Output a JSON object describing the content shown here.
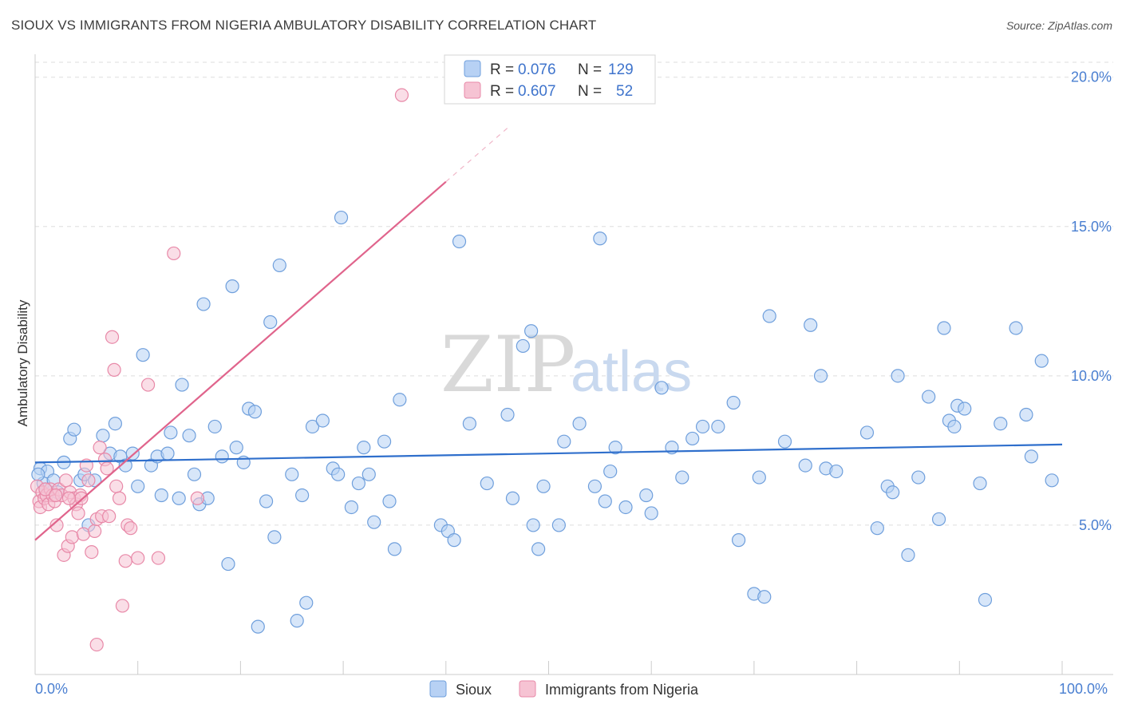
{
  "title": "SIOUX VS IMMIGRANTS FROM NIGERIA AMBULATORY DISABILITY CORRELATION CHART",
  "source": "Source: ZipAtlas.com",
  "watermark": {
    "zip": "ZIP",
    "atlas": "atlas"
  },
  "colors": {
    "sioux_fill": "#b7d1f4",
    "sioux_stroke": "#6f9fdc",
    "sioux_line": "#2f6fcc",
    "nigeria_fill": "#f6c3d3",
    "nigeria_stroke": "#e889a8",
    "nigeria_line": "#e0648c",
    "grid": "#dddddd",
    "tick_label": "#4a7fd1"
  },
  "legend": {
    "rows": [
      {
        "r_label": "R =",
        "r_value": "0.076",
        "n_label": "N =",
        "n_value": "129"
      },
      {
        "r_label": "R =",
        "r_value": "0.607",
        "n_label": "N =",
        "n_value": "52"
      }
    ]
  },
  "chart_data": {
    "type": "scatter",
    "title": "SIOUX VS IMMIGRANTS FROM NIGERIA AMBULATORY DISABILITY CORRELATION CHART",
    "xlabel": "",
    "ylabel": "Ambulatory Disability",
    "xlim": [
      0,
      100
    ],
    "ylim": [
      0,
      20.5
    ],
    "x_tick_labels": [
      "0.0%",
      "100.0%"
    ],
    "y_ticks": [
      5,
      10,
      15,
      20
    ],
    "y_tick_labels": [
      "5.0%",
      "10.0%",
      "15.0%",
      "20.0%"
    ],
    "grid": true,
    "legend_position": "top-center",
    "series": [
      {
        "name": "Sioux",
        "trend": {
          "x0": 0,
          "y0": 7.1,
          "x1": 100,
          "y1": 7.7
        },
        "points": [
          [
            0.5,
            6.9
          ],
          [
            0.8,
            6.4
          ],
          [
            1.2,
            6.8
          ],
          [
            1.8,
            6.5
          ],
          [
            2.2,
            6.1
          ],
          [
            2.8,
            7.1
          ],
          [
            3.4,
            7.9
          ],
          [
            3.8,
            8.2
          ],
          [
            4.4,
            6.5
          ],
          [
            4.8,
            6.7
          ],
          [
            5.2,
            5.0
          ],
          [
            5.8,
            6.5
          ],
          [
            6.6,
            8.0
          ],
          [
            7.3,
            7.4
          ],
          [
            7.8,
            8.4
          ],
          [
            8.3,
            7.3
          ],
          [
            8.8,
            7.0
          ],
          [
            9.5,
            7.4
          ],
          [
            10.0,
            6.3
          ],
          [
            10.5,
            10.7
          ],
          [
            11.3,
            7.0
          ],
          [
            11.9,
            7.3
          ],
          [
            12.3,
            6.0
          ],
          [
            12.9,
            7.4
          ],
          [
            13.2,
            8.1
          ],
          [
            14.0,
            5.9
          ],
          [
            14.3,
            9.7
          ],
          [
            15.0,
            8.0
          ],
          [
            15.5,
            6.7
          ],
          [
            16.0,
            5.7
          ],
          [
            16.4,
            12.4
          ],
          [
            16.8,
            5.9
          ],
          [
            17.5,
            8.3
          ],
          [
            18.2,
            7.3
          ],
          [
            18.8,
            3.7
          ],
          [
            19.2,
            13.0
          ],
          [
            19.6,
            7.6
          ],
          [
            20.3,
            7.1
          ],
          [
            20.8,
            8.9
          ],
          [
            21.4,
            8.8
          ],
          [
            21.7,
            1.6
          ],
          [
            22.5,
            5.8
          ],
          [
            22.9,
            11.8
          ],
          [
            23.3,
            4.6
          ],
          [
            23.8,
            13.7
          ],
          [
            25.0,
            6.7
          ],
          [
            25.5,
            1.8
          ],
          [
            26.0,
            6.0
          ],
          [
            26.4,
            2.4
          ],
          [
            27.0,
            8.3
          ],
          [
            28.0,
            8.5
          ],
          [
            29.0,
            6.9
          ],
          [
            29.5,
            6.7
          ],
          [
            29.8,
            15.3
          ],
          [
            30.8,
            5.6
          ],
          [
            31.5,
            6.4
          ],
          [
            32.0,
            7.6
          ],
          [
            32.5,
            6.7
          ],
          [
            33.0,
            5.1
          ],
          [
            34.0,
            7.8
          ],
          [
            34.5,
            5.8
          ],
          [
            35.0,
            4.2
          ],
          [
            35.5,
            9.2
          ],
          [
            39.5,
            5.0
          ],
          [
            40.2,
            4.8
          ],
          [
            40.8,
            4.5
          ],
          [
            41.3,
            14.5
          ],
          [
            42.3,
            8.4
          ],
          [
            44.0,
            6.4
          ],
          [
            46.5,
            5.9
          ],
          [
            46.0,
            8.7
          ],
          [
            47.5,
            11.0
          ],
          [
            48.3,
            11.5
          ],
          [
            48.5,
            5.0
          ],
          [
            49.0,
            4.2
          ],
          [
            49.5,
            6.3
          ],
          [
            51.0,
            5.0
          ],
          [
            51.5,
            7.8
          ],
          [
            53.0,
            8.4
          ],
          [
            54.5,
            6.3
          ],
          [
            55.0,
            14.6
          ],
          [
            55.5,
            5.8
          ],
          [
            56.0,
            6.8
          ],
          [
            56.5,
            7.6
          ],
          [
            57.5,
            5.6
          ],
          [
            59.5,
            6.0
          ],
          [
            60.0,
            5.4
          ],
          [
            61.0,
            9.6
          ],
          [
            62.0,
            7.6
          ],
          [
            63.0,
            6.6
          ],
          [
            64.0,
            7.9
          ],
          [
            65.0,
            8.3
          ],
          [
            66.5,
            8.3
          ],
          [
            68.0,
            9.1
          ],
          [
            68.5,
            4.5
          ],
          [
            70.5,
            6.6
          ],
          [
            70.0,
            2.7
          ],
          [
            71.0,
            2.6
          ],
          [
            71.5,
            12.0
          ],
          [
            73.0,
            7.8
          ],
          [
            75.0,
            7.0
          ],
          [
            75.5,
            11.7
          ],
          [
            76.5,
            10.0
          ],
          [
            77.0,
            6.9
          ],
          [
            78.0,
            6.8
          ],
          [
            81.0,
            8.1
          ],
          [
            82.0,
            4.9
          ],
          [
            83.0,
            6.3
          ],
          [
            83.5,
            6.1
          ],
          [
            84.0,
            10.0
          ],
          [
            85.0,
            4.0
          ],
          [
            86.0,
            6.6
          ],
          [
            87.0,
            9.3
          ],
          [
            88.0,
            5.2
          ],
          [
            88.5,
            11.6
          ],
          [
            89.0,
            8.5
          ],
          [
            89.5,
            8.3
          ],
          [
            89.8,
            9.0
          ],
          [
            90.5,
            8.9
          ],
          [
            92.5,
            2.5
          ],
          [
            92.0,
            6.4
          ],
          [
            94.0,
            8.4
          ],
          [
            95.5,
            11.6
          ],
          [
            96.5,
            8.7
          ],
          [
            97.0,
            7.3
          ],
          [
            98.0,
            10.5
          ],
          [
            99.0,
            6.5
          ],
          [
            0.3,
            6.7
          ],
          [
            1.0,
            6.2
          ]
        ]
      },
      {
        "name": "Immigrants from Nigeria",
        "trend": {
          "x0": 0,
          "y0": 4.5,
          "x1": 40,
          "y1": 16.5
        },
        "trend_dashed": {
          "x0": 40,
          "y0": 16.5,
          "x1": 46,
          "y1": 18.3
        },
        "points": [
          [
            0.2,
            6.3
          ],
          [
            0.4,
            5.8
          ],
          [
            0.5,
            5.6
          ],
          [
            0.7,
            6.1
          ],
          [
            0.9,
            5.9
          ],
          [
            1.1,
            6.0
          ],
          [
            1.3,
            5.7
          ],
          [
            1.5,
            6.2
          ],
          [
            1.7,
            6.0
          ],
          [
            1.9,
            5.8
          ],
          [
            2.1,
            5.0
          ],
          [
            2.3,
            6.2
          ],
          [
            2.6,
            6.0
          ],
          [
            2.8,
            4.0
          ],
          [
            3.0,
            6.5
          ],
          [
            3.2,
            4.3
          ],
          [
            3.4,
            6.1
          ],
          [
            3.6,
            4.6
          ],
          [
            3.8,
            5.9
          ],
          [
            4.0,
            5.7
          ],
          [
            4.2,
            5.4
          ],
          [
            4.4,
            6.0
          ],
          [
            4.7,
            4.7
          ],
          [
            5.0,
            7.0
          ],
          [
            5.2,
            6.5
          ],
          [
            5.5,
            4.1
          ],
          [
            5.8,
            4.8
          ],
          [
            6.0,
            5.2
          ],
          [
            6.3,
            7.6
          ],
          [
            6.5,
            5.3
          ],
          [
            6.8,
            7.2
          ],
          [
            7.0,
            6.9
          ],
          [
            7.2,
            5.3
          ],
          [
            7.5,
            11.3
          ],
          [
            7.7,
            10.2
          ],
          [
            7.9,
            6.3
          ],
          [
            8.2,
            5.9
          ],
          [
            8.5,
            2.3
          ],
          [
            8.8,
            3.8
          ],
          [
            9.0,
            5.0
          ],
          [
            9.3,
            4.9
          ],
          [
            10.0,
            3.9
          ],
          [
            11.0,
            9.7
          ],
          [
            12.0,
            3.9
          ],
          [
            13.5,
            14.1
          ],
          [
            15.8,
            5.9
          ],
          [
            6.0,
            1.0
          ],
          [
            4.5,
            5.9
          ],
          [
            1.0,
            6.2
          ],
          [
            3.3,
            5.9
          ],
          [
            2.0,
            6.0
          ],
          [
            35.7,
            19.4
          ]
        ]
      }
    ]
  },
  "bottom_legend": [
    {
      "label": "Sioux"
    },
    {
      "label": "Immigrants from Nigeria"
    }
  ]
}
